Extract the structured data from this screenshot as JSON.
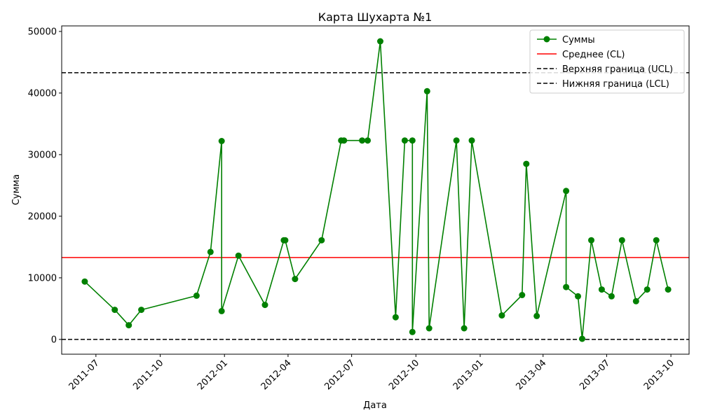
{
  "chart_data": {
    "type": "line",
    "title": "Карта Шухарта №1",
    "xlabel": "Дата",
    "ylabel": "Сумма",
    "xlim": [
      "2011-05-13",
      "2013-10-27"
    ],
    "ylim": [
      -2400,
      50900
    ],
    "yticks": [
      0,
      10000,
      20000,
      30000,
      40000,
      50000
    ],
    "ytick_labels": [
      "0",
      "10000",
      "20000",
      "30000",
      "40000",
      "50000"
    ],
    "xticks": [
      "2011-07-01",
      "2011-10-01",
      "2012-01-01",
      "2012-04-01",
      "2012-07-01",
      "2012-10-01",
      "2013-01-01",
      "2013-04-01",
      "2013-07-01",
      "2013-10-01"
    ],
    "xtick_labels": [
      "2011-07",
      "2011-10",
      "2012-01",
      "2012-04",
      "2012-07",
      "2012-10",
      "2013-01",
      "2013-04",
      "2013-07",
      "2013-10"
    ],
    "grid": false,
    "legend_position": "top-right",
    "series": [
      {
        "name": "Суммы",
        "color": "#008000",
        "marker": "circle",
        "x": [
          "2011-06-15",
          "2011-07-28",
          "2011-08-17",
          "2011-09-04",
          "2011-11-22",
          "2011-12-12",
          "2011-12-28",
          "2011-12-28",
          "2012-01-21",
          "2012-02-28",
          "2012-03-26",
          "2012-03-28",
          "2012-04-11",
          "2012-05-19",
          "2012-06-16",
          "2012-06-20",
          "2012-07-16",
          "2012-07-24",
          "2012-08-11",
          "2012-09-02",
          "2012-09-15",
          "2012-09-26",
          "2012-09-26",
          "2012-10-17",
          "2012-10-20",
          "2012-11-28",
          "2012-12-09",
          "2012-12-20",
          "2013-02-01",
          "2013-03-02",
          "2013-03-08",
          "2013-03-23",
          "2013-05-04",
          "2013-05-04",
          "2013-05-21",
          "2013-05-27",
          "2013-06-09",
          "2013-06-24",
          "2013-07-08",
          "2013-07-23",
          "2013-08-12",
          "2013-08-28",
          "2013-09-10",
          "2013-09-27"
        ],
        "values": [
          9400,
          4800,
          2300,
          4800,
          7100,
          14200,
          32200,
          4600,
          13600,
          5600,
          16100,
          16100,
          9800,
          16100,
          32300,
          32300,
          32300,
          32300,
          48400,
          3600,
          32300,
          32300,
          1200,
          40300,
          1800,
          32300,
          1800,
          32300,
          3900,
          7200,
          28500,
          3800,
          24100,
          8500,
          7000,
          100,
          16100,
          8100,
          7000,
          16100,
          6200,
          8100,
          16100,
          8100
        ]
      }
    ],
    "reference_lines": [
      {
        "name": "Среднее (CL)",
        "value": 13300,
        "color": "#ff0000",
        "style": "solid"
      },
      {
        "name": "Верхняя граница (UCL)",
        "value": 43300,
        "color": "#000000",
        "style": "dashed"
      },
      {
        "name": "Нижняя граница (LCL)",
        "value": 0,
        "color": "#000000",
        "style": "dashed"
      }
    ]
  }
}
